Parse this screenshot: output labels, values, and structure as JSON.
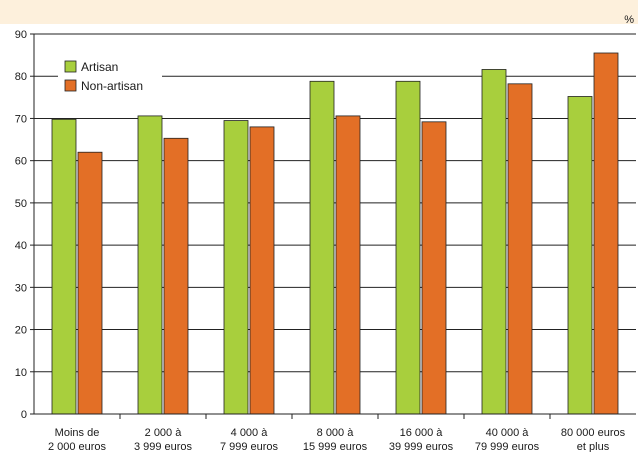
{
  "chart_data": {
    "type": "bar",
    "unit": "%",
    "categories": [
      [
        "Moins de",
        "2 000 euros"
      ],
      [
        "2 000 à",
        "3 999 euros"
      ],
      [
        "4 000 à",
        "7 999 euros"
      ],
      [
        "8 000 à",
        "15 999 euros"
      ],
      [
        "16 000 à",
        "39 999 euros"
      ],
      [
        "40 000 à",
        "79 999 euros"
      ],
      [
        "80 000 euros",
        "et plus"
      ]
    ],
    "series": [
      {
        "name": "Artisan",
        "color": "#a8cf3d",
        "values": [
          69.8,
          70.6,
          69.5,
          78.8,
          78.8,
          81.6,
          75.2
        ]
      },
      {
        "name": "Non-artisan",
        "color": "#e36f26",
        "values": [
          62.0,
          65.3,
          68.0,
          70.6,
          69.2,
          78.2,
          85.5
        ]
      }
    ],
    "ylim": [
      0,
      90
    ],
    "yticks": [
      0,
      10,
      20,
      30,
      40,
      50,
      60,
      70,
      80,
      90
    ],
    "grid": true,
    "legend_position": "top-left",
    "background_band_color": "#fdf0dc"
  }
}
